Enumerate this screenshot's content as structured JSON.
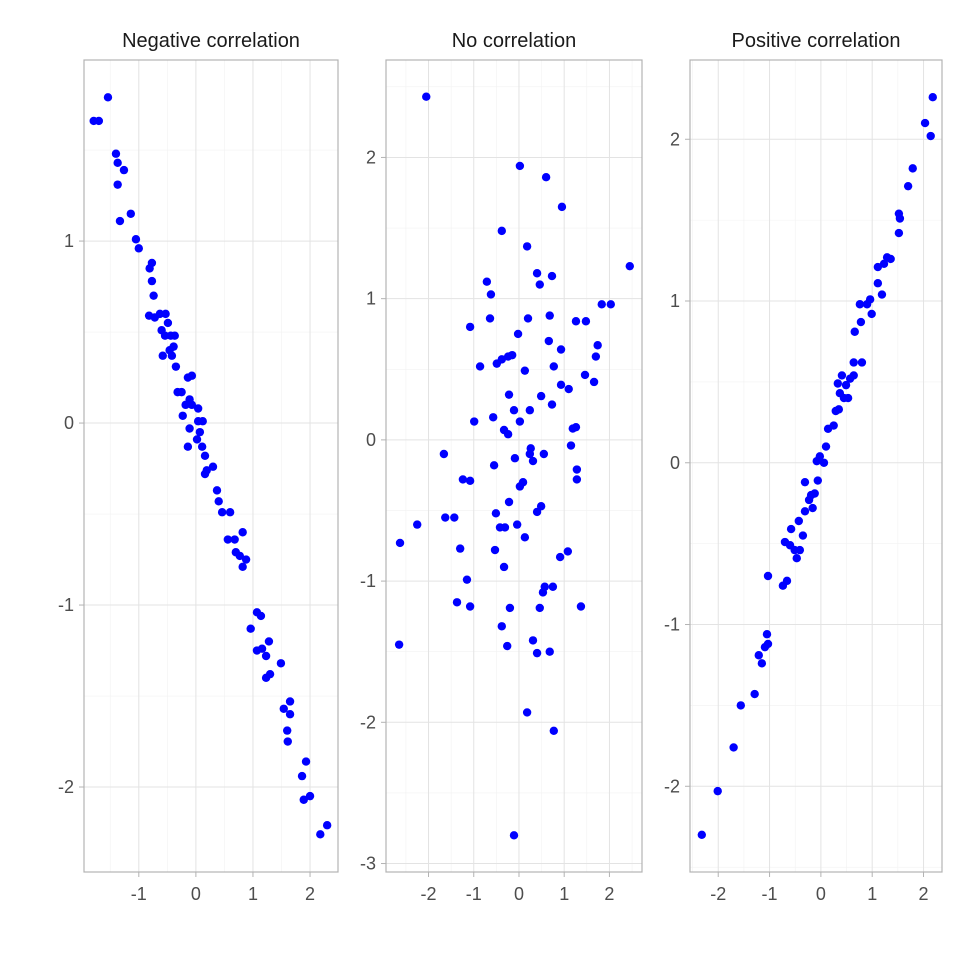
{
  "chart_data": [
    {
      "type": "scatter",
      "title": "Negative correlation",
      "xlim": [
        -1.96,
        2.49
      ],
      "ylim": [
        -2.467,
        1.995
      ],
      "xticks": [
        -1,
        0,
        1,
        2
      ],
      "yticks": [
        -2,
        -1,
        0,
        1
      ],
      "grid": true,
      "point_color": "#0000ff",
      "points": [
        [
          -1.79,
          1.66
        ],
        [
          -1.7,
          1.66
        ],
        [
          -1.54,
          1.79
        ],
        [
          -1.4,
          1.48
        ],
        [
          -1.37,
          1.43
        ],
        [
          -1.37,
          1.31
        ],
        [
          -1.26,
          1.39
        ],
        [
          -1.33,
          1.11
        ],
        [
          -1.14,
          1.15
        ],
        [
          -1.05,
          1.01
        ],
        [
          -1.0,
          0.96
        ],
        [
          -0.77,
          0.88
        ],
        [
          -0.81,
          0.85
        ],
        [
          -0.77,
          0.78
        ],
        [
          -0.74,
          0.7
        ],
        [
          -0.82,
          0.59
        ],
        [
          -0.72,
          0.58
        ],
        [
          -0.63,
          0.6
        ],
        [
          -0.53,
          0.6
        ],
        [
          -0.6,
          0.51
        ],
        [
          -0.49,
          0.55
        ],
        [
          -0.44,
          0.48
        ],
        [
          -0.37,
          0.48
        ],
        [
          -0.54,
          0.48
        ],
        [
          -0.58,
          0.37
        ],
        [
          -0.46,
          0.4
        ],
        [
          -0.42,
          0.37
        ],
        [
          -0.35,
          0.31
        ],
        [
          -0.39,
          0.42
        ],
        [
          -0.32,
          0.17
        ],
        [
          -0.25,
          0.17
        ],
        [
          -0.14,
          0.25
        ],
        [
          -0.18,
          0.1
        ],
        [
          -0.23,
          0.04
        ],
        [
          -0.11,
          0.13
        ],
        [
          -0.11,
          -0.03
        ],
        [
          -0.14,
          -0.13
        ],
        [
          -0.07,
          0.26
        ],
        [
          -0.07,
          0.1
        ],
        [
          0.04,
          0.08
        ],
        [
          0.04,
          0.01
        ],
        [
          0.07,
          -0.05
        ],
        [
          0.12,
          0.01
        ],
        [
          0.02,
          -0.09
        ],
        [
          0.11,
          -0.13
        ],
        [
          0.16,
          -0.18
        ],
        [
          0.19,
          -0.26
        ],
        [
          0.3,
          -0.24
        ],
        [
          0.16,
          -0.28
        ],
        [
          0.37,
          -0.37
        ],
        [
          0.4,
          -0.43
        ],
        [
          0.46,
          -0.49
        ],
        [
          0.6,
          -0.49
        ],
        [
          0.56,
          -0.64
        ],
        [
          0.68,
          -0.64
        ],
        [
          0.82,
          -0.6
        ],
        [
          0.7,
          -0.71
        ],
        [
          0.77,
          -0.73
        ],
        [
          0.82,
          -0.79
        ],
        [
          0.88,
          -0.75
        ],
        [
          0.96,
          -1.13
        ],
        [
          1.07,
          -1.04
        ],
        [
          1.14,
          -1.06
        ],
        [
          1.07,
          -1.25
        ],
        [
          1.16,
          -1.24
        ],
        [
          1.23,
          -1.28
        ],
        [
          1.28,
          -1.2
        ],
        [
          1.23,
          -1.4
        ],
        [
          1.3,
          -1.38
        ],
        [
          1.49,
          -1.32
        ],
        [
          1.54,
          -1.57
        ],
        [
          1.65,
          -1.53
        ],
        [
          1.65,
          -1.6
        ],
        [
          1.6,
          -1.69
        ],
        [
          1.61,
          -1.75
        ],
        [
          1.86,
          -1.94
        ],
        [
          1.93,
          -1.86
        ],
        [
          1.89,
          -2.07
        ],
        [
          2.0,
          -2.05
        ],
        [
          2.18,
          -2.26
        ],
        [
          2.3,
          -2.21
        ]
      ]
    },
    {
      "type": "scatter",
      "title": "No correlation",
      "xlim": [
        -2.94,
        2.72
      ],
      "ylim": [
        -3.06,
        2.69
      ],
      "xticks": [
        -2,
        -1,
        0,
        1,
        2
      ],
      "yticks": [
        -3,
        -2,
        -1,
        0,
        1,
        2
      ],
      "grid": true,
      "point_color": "#0000ff",
      "points": [
        [
          -2.05,
          2.43
        ],
        [
          0.02,
          1.94
        ],
        [
          0.6,
          1.86
        ],
        [
          0.95,
          1.65
        ],
        [
          2.45,
          1.23
        ],
        [
          -0.38,
          1.48
        ],
        [
          0.18,
          1.37
        ],
        [
          -0.71,
          1.12
        ],
        [
          -0.62,
          1.03
        ],
        [
          0.4,
          1.18
        ],
        [
          0.73,
          1.16
        ],
        [
          0.46,
          1.1
        ],
        [
          -0.64,
          0.86
        ],
        [
          -1.08,
          0.8
        ],
        [
          -0.02,
          0.75
        ],
        [
          0.2,
          0.86
        ],
        [
          0.68,
          0.88
        ],
        [
          1.26,
          0.84
        ],
        [
          1.48,
          0.84
        ],
        [
          1.83,
          0.96
        ],
        [
          2.03,
          0.96
        ],
        [
          1.74,
          0.67
        ],
        [
          1.7,
          0.59
        ],
        [
          1.66,
          0.41
        ],
        [
          1.46,
          0.46
        ],
        [
          -0.86,
          0.52
        ],
        [
          -0.38,
          0.57
        ],
        [
          -0.24,
          0.59
        ],
        [
          -0.15,
          0.6
        ],
        [
          -0.49,
          0.54
        ],
        [
          0.66,
          0.7
        ],
        [
          0.93,
          0.64
        ],
        [
          0.77,
          0.52
        ],
        [
          0.13,
          0.49
        ],
        [
          0.93,
          0.39
        ],
        [
          1.1,
          0.36
        ],
        [
          -0.22,
          0.32
        ],
        [
          0.49,
          0.31
        ],
        [
          0.73,
          0.25
        ],
        [
          -0.57,
          0.16
        ],
        [
          -0.11,
          0.21
        ],
        [
          0.24,
          0.21
        ],
        [
          0.02,
          0.13
        ],
        [
          -0.99,
          0.13
        ],
        [
          -0.33,
          0.07
        ],
        [
          -0.24,
          0.04
        ],
        [
          1.19,
          0.08
        ],
        [
          1.26,
          0.09
        ],
        [
          1.15,
          -0.04
        ],
        [
          -0.09,
          -0.13
        ],
        [
          0.24,
          -0.1
        ],
        [
          0.26,
          -0.06
        ],
        [
          0.55,
          -0.1
        ],
        [
          0.31,
          -0.15
        ],
        [
          -1.66,
          -0.1
        ],
        [
          -0.55,
          -0.18
        ],
        [
          1.28,
          -0.21
        ],
        [
          1.28,
          -0.28
        ],
        [
          -1.24,
          -0.28
        ],
        [
          -1.08,
          -0.29
        ],
        [
          0.09,
          -0.3
        ],
        [
          0.02,
          -0.33
        ],
        [
          -0.22,
          -0.44
        ],
        [
          0.49,
          -0.47
        ],
        [
          0.4,
          -0.51
        ],
        [
          -1.63,
          -0.55
        ],
        [
          -1.43,
          -0.55
        ],
        [
          -0.51,
          -0.52
        ],
        [
          -0.42,
          -0.62
        ],
        [
          -0.31,
          -0.62
        ],
        [
          -0.04,
          -0.6
        ],
        [
          0.13,
          -0.69
        ],
        [
          -2.25,
          -0.6
        ],
        [
          -2.63,
          -0.73
        ],
        [
          -1.3,
          -0.77
        ],
        [
          -0.53,
          -0.78
        ],
        [
          0.91,
          -0.83
        ],
        [
          1.08,
          -0.79
        ],
        [
          -0.33,
          -0.9
        ],
        [
          -1.15,
          -0.99
        ],
        [
          0.57,
          -1.04
        ],
        [
          0.75,
          -1.04
        ],
        [
          0.53,
          -1.08
        ],
        [
          -1.37,
          -1.15
        ],
        [
          -1.08,
          -1.18
        ],
        [
          -0.2,
          -1.19
        ],
        [
          0.46,
          -1.19
        ],
        [
          1.37,
          -1.18
        ],
        [
          -0.38,
          -1.32
        ],
        [
          0.31,
          -1.42
        ],
        [
          -0.26,
          -1.46
        ],
        [
          -2.65,
          -1.45
        ],
        [
          0.4,
          -1.51
        ],
        [
          0.68,
          -1.5
        ],
        [
          0.18,
          -1.93
        ],
        [
          0.77,
          -2.06
        ],
        [
          -0.11,
          -2.8
        ]
      ]
    },
    {
      "type": "scatter",
      "title": "Positive correlation",
      "xlim": [
        -2.55,
        2.36
      ],
      "ylim": [
        -2.53,
        2.49
      ],
      "xticks": [
        -2,
        -1,
        0,
        1,
        2
      ],
      "yticks": [
        -2,
        -1,
        0,
        1,
        2
      ],
      "grid": true,
      "point_color": "#0000ff",
      "points": [
        [
          -2.32,
          -2.3
        ],
        [
          -2.01,
          -2.03
        ],
        [
          -1.7,
          -1.76
        ],
        [
          -1.56,
          -1.5
        ],
        [
          -1.29,
          -1.43
        ],
        [
          -1.21,
          -1.19
        ],
        [
          -1.15,
          -1.24
        ],
        [
          -1.09,
          -1.14
        ],
        [
          -1.05,
          -1.06
        ],
        [
          -1.03,
          -1.12
        ],
        [
          -1.03,
          -0.7
        ],
        [
          -0.74,
          -0.76
        ],
        [
          -0.66,
          -0.73
        ],
        [
          -0.7,
          -0.49
        ],
        [
          -0.58,
          -0.41
        ],
        [
          -0.6,
          -0.51
        ],
        [
          -0.51,
          -0.54
        ],
        [
          -0.47,
          -0.59
        ],
        [
          -0.41,
          -0.54
        ],
        [
          -0.43,
          -0.36
        ],
        [
          -0.35,
          -0.45
        ],
        [
          -0.31,
          -0.3
        ],
        [
          -0.23,
          -0.23
        ],
        [
          -0.31,
          -0.12
        ],
        [
          -0.19,
          -0.2
        ],
        [
          -0.12,
          -0.19
        ],
        [
          -0.16,
          -0.28
        ],
        [
          -0.06,
          -0.11
        ],
        [
          -0.08,
          0.01
        ],
        [
          -0.02,
          0.04
        ],
        [
          0.06,
          0.0
        ],
        [
          0.1,
          0.1
        ],
        [
          0.14,
          0.21
        ],
        [
          0.25,
          0.23
        ],
        [
          0.29,
          0.32
        ],
        [
          0.35,
          0.33
        ],
        [
          0.37,
          0.43
        ],
        [
          0.33,
          0.49
        ],
        [
          0.41,
          0.54
        ],
        [
          0.49,
          0.48
        ],
        [
          0.45,
          0.4
        ],
        [
          0.53,
          0.4
        ],
        [
          0.57,
          0.52
        ],
        [
          0.64,
          0.54
        ],
        [
          0.64,
          0.62
        ],
        [
          0.8,
          0.62
        ],
        [
          0.66,
          0.81
        ],
        [
          0.78,
          0.87
        ],
        [
          0.76,
          0.98
        ],
        [
          0.9,
          0.98
        ],
        [
          0.96,
          1.01
        ],
        [
          0.99,
          0.92
        ],
        [
          1.11,
          1.11
        ],
        [
          1.11,
          1.21
        ],
        [
          1.23,
          1.23
        ],
        [
          1.29,
          1.27
        ],
        [
          1.36,
          1.26
        ],
        [
          1.19,
          1.04
        ],
        [
          1.52,
          1.42
        ],
        [
          1.54,
          1.51
        ],
        [
          1.52,
          1.54
        ],
        [
          1.7,
          1.71
        ],
        [
          1.79,
          1.82
        ],
        [
          2.03,
          2.1
        ],
        [
          2.14,
          2.02
        ],
        [
          2.18,
          2.26
        ]
      ]
    }
  ]
}
